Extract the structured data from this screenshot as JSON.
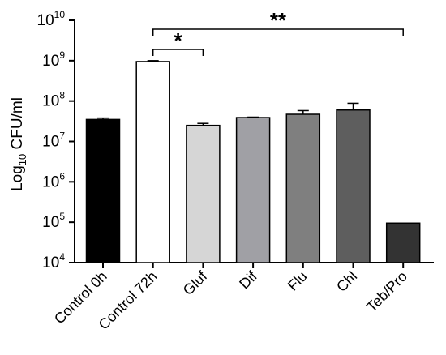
{
  "chart_data": {
    "type": "bar",
    "title": "",
    "ylabel": {
      "base": "Log",
      "sub": "10",
      "rest": " CFU/ml"
    },
    "xlabel": "",
    "yscale": "log",
    "ylim": [
      10000,
      10000000000
    ],
    "yticks": [
      {
        "value": 10000,
        "base": "10",
        "exp": "4"
      },
      {
        "value": 100000,
        "base": "10",
        "exp": "5"
      },
      {
        "value": 1000000,
        "base": "10",
        "exp": "6"
      },
      {
        "value": 10000000,
        "base": "10",
        "exp": "7"
      },
      {
        "value": 100000000,
        "base": "10",
        "exp": "8"
      },
      {
        "value": 1000000000,
        "base": "10",
        "exp": "9"
      },
      {
        "value": 10000000000,
        "base": "10",
        "exp": "10"
      }
    ],
    "categories": [
      "Control 0h",
      "Control 72h",
      "Gluf",
      "Dif",
      "Flu",
      "Chl",
      "Teb/Pro"
    ],
    "values": [
      35000000,
      950000000,
      25000000,
      39000000,
      47000000,
      60000000,
      95000
    ],
    "error_upper": [
      38000000,
      1000000000,
      28000000,
      40000000,
      58000000,
      88000000,
      null
    ],
    "colors": [
      "#000000",
      "#ffffff",
      "#d6d6d6",
      "#a0a0a5",
      "#7f7f7f",
      "#5e5e5e",
      "#333333"
    ],
    "significance": [
      {
        "from": 1,
        "to": 2,
        "label": "*"
      },
      {
        "from": 1,
        "to": 6,
        "label": "**"
      }
    ],
    "grid": false,
    "legend": "none"
  }
}
